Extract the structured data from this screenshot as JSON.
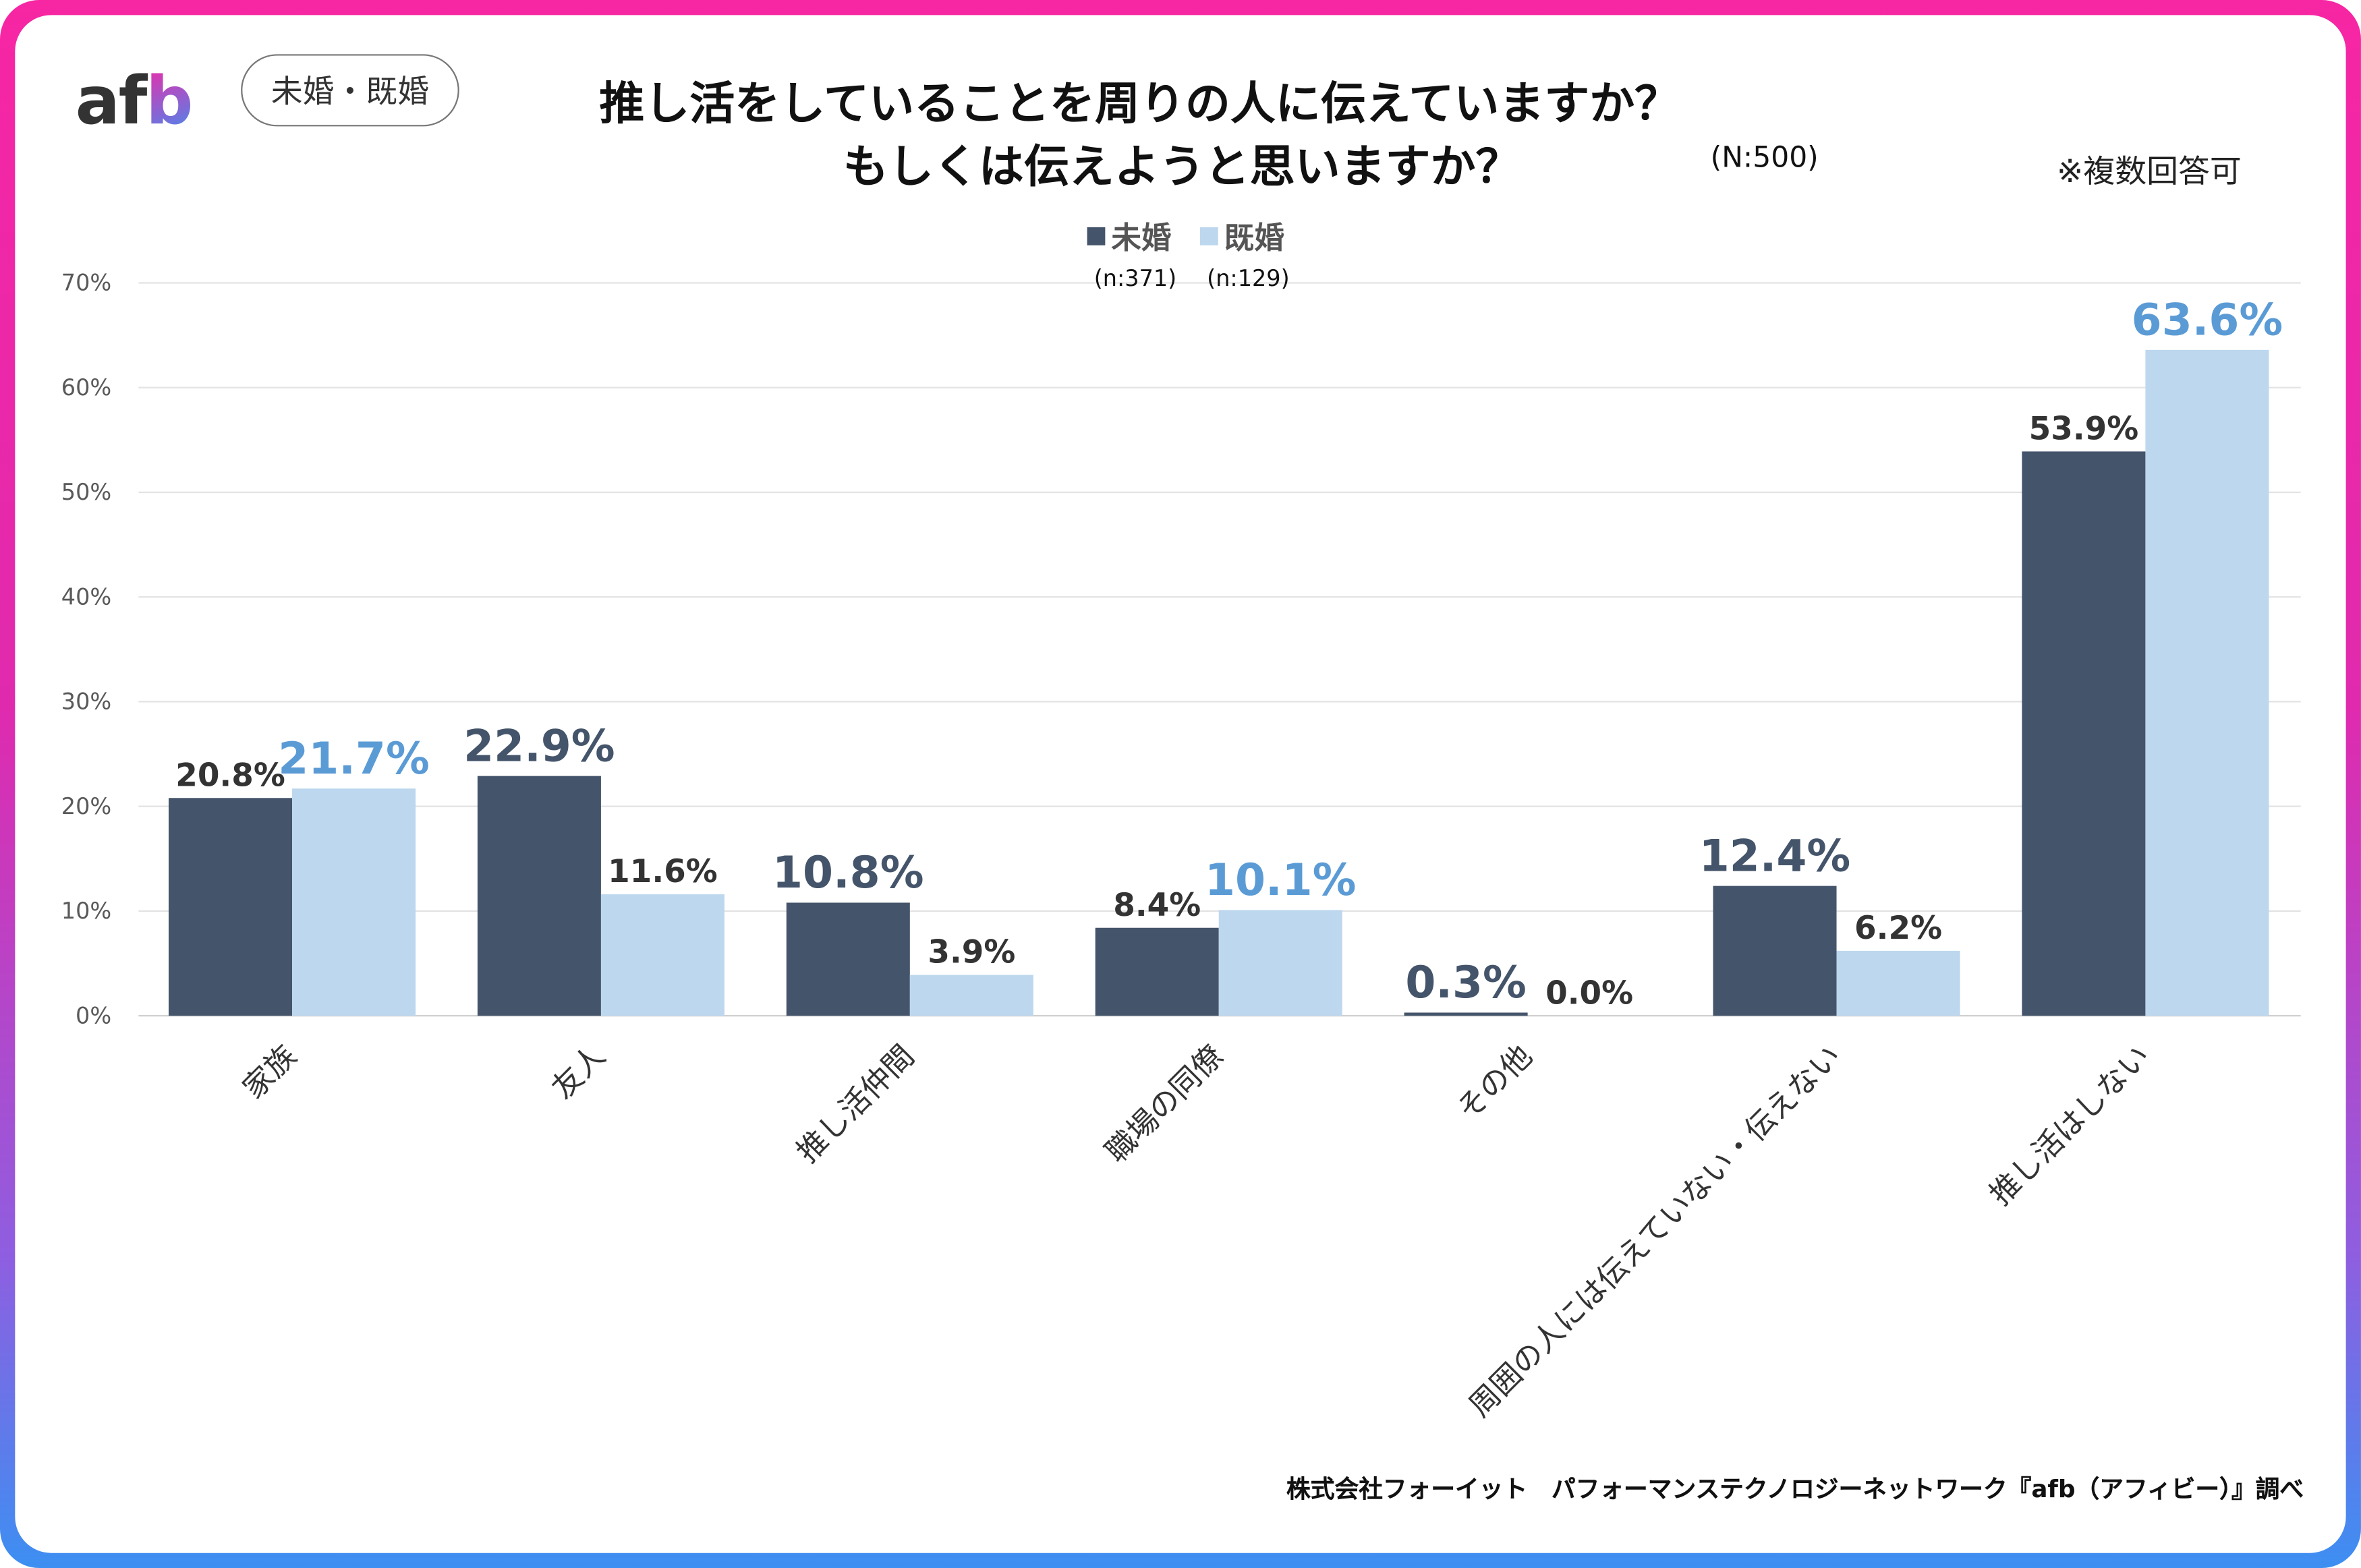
{
  "logo": "afb",
  "badge": "未婚・既婚",
  "title_line1": "推し活をしていることを周りの人に伝えていますか？",
  "title_line2": "もしくは伝えようと思いますか？",
  "sample": "(N:500)",
  "note": "※複数回答可",
  "footer": "株式会社フォーイット　パフォーマンステクノロジーネットワーク『afb（アフィビー）』調べ",
  "colors": {
    "unmarried": "#44546a",
    "married": "#bdd7ee",
    "highlight_married": "#5b9bd5",
    "label": "#333f4f"
  },
  "chart_data": {
    "type": "bar",
    "categories": [
      "家族",
      "友人",
      "推し活仲間",
      "職場の同僚",
      "その他",
      "周囲の人には伝えていない・伝えない",
      "推し活はしない"
    ],
    "series": [
      {
        "name": "未婚",
        "sub": "(n:371)",
        "values": [
          20.8,
          22.9,
          10.8,
          8.4,
          0.3,
          12.4,
          53.9
        ],
        "emphasized": [
          false,
          true,
          true,
          false,
          true,
          true,
          false
        ]
      },
      {
        "name": "既婚",
        "sub": "(n:129)",
        "values": [
          21.7,
          11.6,
          3.9,
          10.1,
          0.0,
          6.2,
          63.6
        ],
        "emphasized": [
          true,
          false,
          false,
          true,
          false,
          false,
          true
        ]
      }
    ],
    "yticks": [
      "0%",
      "10%",
      "20%",
      "30%",
      "40%",
      "50%",
      "60%",
      "70%"
    ],
    "ylim": [
      0,
      70
    ],
    "grid": true,
    "legend": "top-center"
  }
}
